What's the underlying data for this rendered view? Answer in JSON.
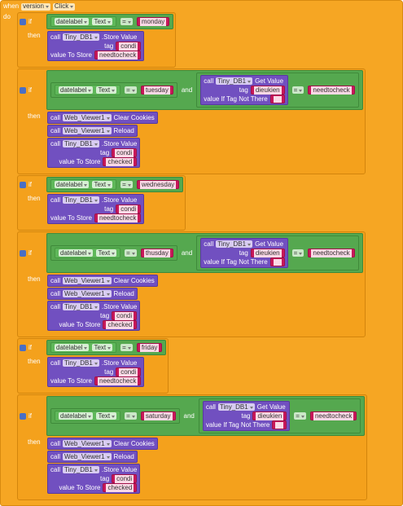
{
  "event": {
    "when": "when",
    "component": "version",
    "event": "Click",
    "do": "do"
  },
  "blocks": [
    {
      "if": "if",
      "then": "then",
      "condition": {
        "left": {
          "component": "datelabel",
          "property": "Text"
        },
        "op": "=",
        "right": "monday"
      },
      "statements": [
        {
          "call": "call",
          "component": "Tiny_DB1",
          "method": ".Store Value",
          "params": [
            {
              "label": "tag",
              "value": "condi"
            },
            {
              "label": "value To Store",
              "value": "needtocheck"
            }
          ]
        }
      ]
    },
    {
      "if": "if",
      "then": "then",
      "condition": {
        "left": {
          "left": {
            "component": "datelabel",
            "property": "Text"
          },
          "op": "=",
          "right": "tuesday"
        },
        "op": "and",
        "right": {
          "left": {
            "call": "call",
            "component": "Tiny_DB1",
            "method": "Get Value",
            "params": [
              {
                "label": "tag",
                "value": "dieukien"
              },
              {
                "label": "value If Tag Not There"
              }
            ]
          },
          "op": "=",
          "right": "needtocheck"
        }
      },
      "statements": [
        {
          "call": "call",
          "component": "Web_Viewer1",
          "method": "Clear Cookies"
        },
        {
          "call": "call",
          "component": "Web_Viewer1",
          "method": "Reload"
        },
        {
          "call": "call",
          "component": "Tiny_DB1",
          "method": ".Store Value",
          "params": [
            {
              "label": "tag",
              "value": "condi"
            },
            {
              "label": "value To Store",
              "value": "checked"
            }
          ]
        }
      ]
    },
    {
      "if": "if",
      "then": "then",
      "condition": {
        "left": {
          "component": "datelabel",
          "property": "Text"
        },
        "op": "=",
        "right": "wednesday"
      },
      "statements": [
        {
          "call": "call",
          "component": "Tiny_DB1",
          "method": ".Store Value",
          "params": [
            {
              "label": "tag",
              "value": "condi"
            },
            {
              "label": "value To Store",
              "value": "needtocheck"
            }
          ]
        }
      ]
    },
    {
      "if": "if",
      "then": "then",
      "condition": {
        "left": {
          "left": {
            "component": "datelabel",
            "property": "Text"
          },
          "op": "=",
          "right": "thusday"
        },
        "op": "and",
        "right": {
          "left": {
            "call": "call",
            "component": "Tiny_DB1",
            "method": "Get Value",
            "params": [
              {
                "label": "tag",
                "value": "dieukien"
              },
              {
                "label": "value If Tag Not There"
              }
            ]
          },
          "op": "=",
          "right": "needtocheck"
        }
      },
      "statements": [
        {
          "call": "call",
          "component": "Web_Viewer1",
          "method": "Clear Cookies"
        },
        {
          "call": "call",
          "component": "Web_Viewer1",
          "method": "Reload"
        },
        {
          "call": "call",
          "component": "Tiny_DB1",
          "method": ".Store Value",
          "params": [
            {
              "label": "tag",
              "value": "condi"
            },
            {
              "label": "value To Store",
              "value": "checked"
            }
          ]
        }
      ]
    },
    {
      "if": "if",
      "then": "then",
      "condition": {
        "left": {
          "component": "datelabel",
          "property": "Text"
        },
        "op": "=",
        "right": "friday"
      },
      "statements": [
        {
          "call": "call",
          "component": "Tiny_DB1",
          "method": ".Store Value",
          "params": [
            {
              "label": "tag",
              "value": "condi"
            },
            {
              "label": "value To Store",
              "value": "needtocheck"
            }
          ]
        }
      ]
    },
    {
      "if": "if",
      "then": "then",
      "condition": {
        "left": {
          "left": {
            "component": "datelabel",
            "property": "Text"
          },
          "op": "=",
          "right": "saturday"
        },
        "op": "and",
        "right": {
          "left": {
            "call": "call",
            "component": "Tiny_DB1",
            "method": "Get Value",
            "params": [
              {
                "label": "tag",
                "value": "dieukien"
              },
              {
                "label": "value If Tag Not There"
              }
            ]
          },
          "op": "=",
          "right": "needtocheck"
        }
      },
      "statements": [
        {
          "call": "call",
          "component": "Web_Viewer1",
          "method": "Clear Cookies"
        },
        {
          "call": "call",
          "component": "Web_Viewer1",
          "method": "Reload"
        },
        {
          "call": "call",
          "component": "Tiny_DB1",
          "method": ".Store Value",
          "params": [
            {
              "label": "tag",
              "value": "condi"
            },
            {
              "label": "value To Store",
              "value": "checked"
            }
          ]
        }
      ]
    }
  ]
}
